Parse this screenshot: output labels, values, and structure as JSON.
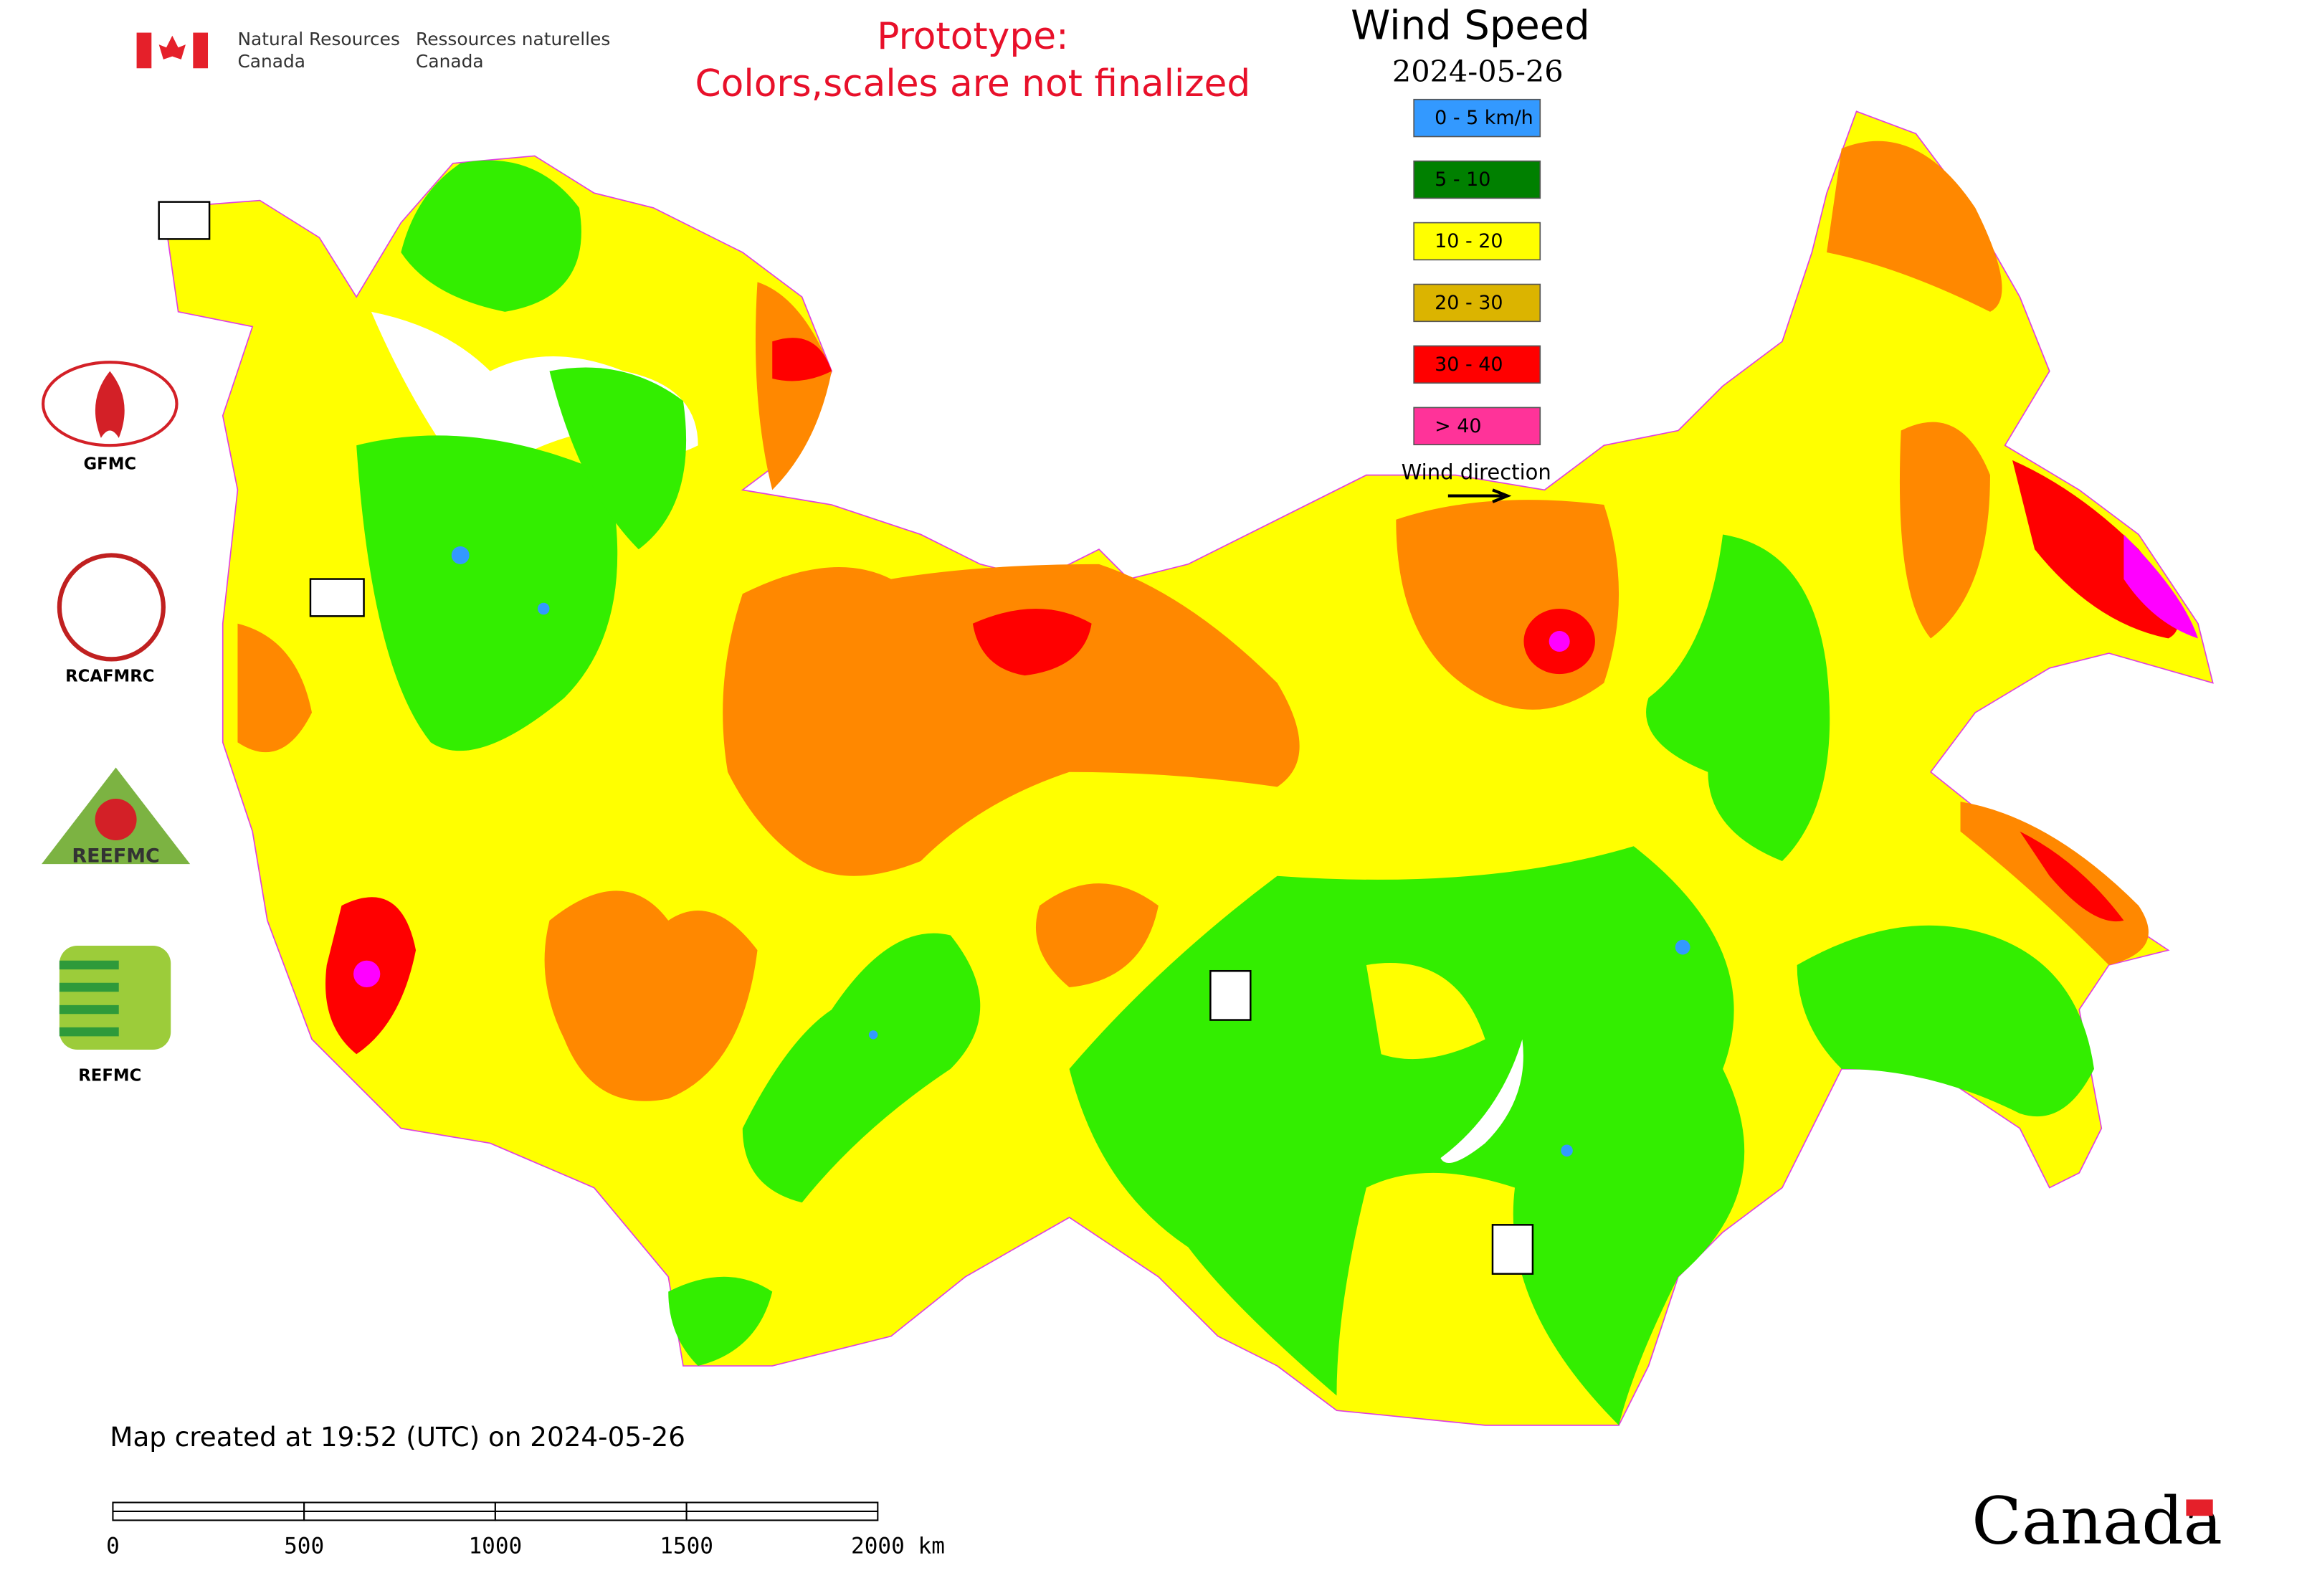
{
  "header": {
    "agency_en": [
      "Natural Resources",
      "Canada"
    ],
    "agency_fr": [
      "Ressources naturelles",
      "Canada"
    ],
    "notice": [
      "Prototype:",
      "Colors,scales are not finalized"
    ]
  },
  "legend": {
    "title": "Wind Speed",
    "date": "2024-05-26",
    "items": [
      {
        "label": "0 - 5 km/h",
        "color": "#3399ff"
      },
      {
        "label": "5 - 10",
        "color": "#008000"
      },
      {
        "label": "10 - 20",
        "color": "#ffff00"
      },
      {
        "label": "20 - 30",
        "color": "#dbb400"
      },
      {
        "label": "30 - 40",
        "color": "#ff0000"
      },
      {
        "label": "> 40",
        "color": "#ff3399"
      }
    ],
    "direction_label": "Wind direction"
  },
  "logos": [
    "GFMC",
    "RCAFMRC",
    "REEFMC",
    "REFMC"
  ],
  "footer": {
    "created": "Map created at 19:52 (UTC) on 2024-05-26",
    "scale_labels": [
      "0",
      "500",
      "1000",
      "1500",
      "2000 km"
    ],
    "wordmark": "Canada"
  }
}
